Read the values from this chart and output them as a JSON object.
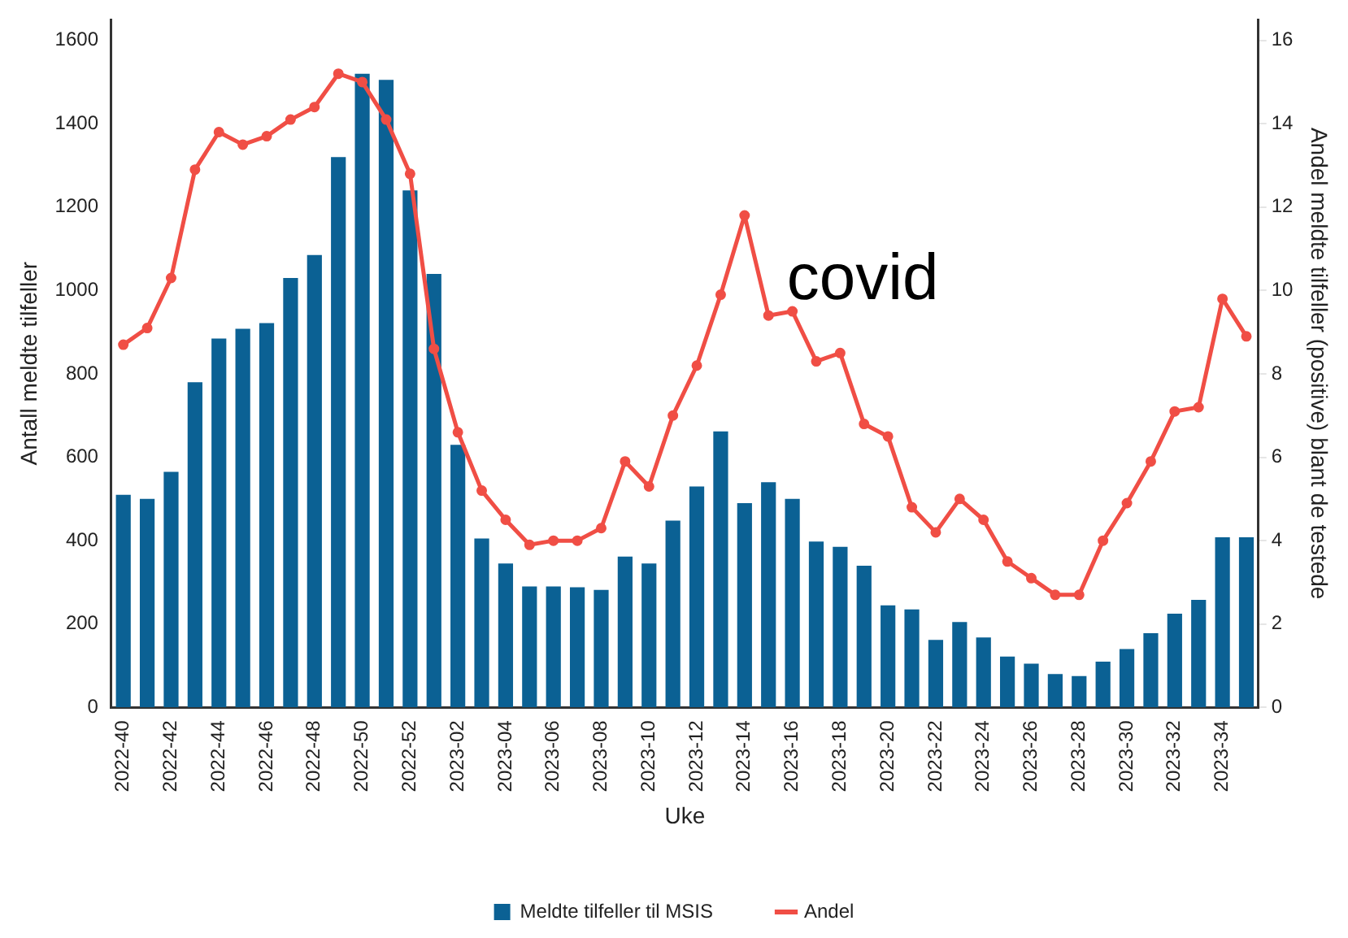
{
  "chart_data": {
    "type": "bar",
    "xlabel": "Uke",
    "ylabel": "Antall meldte tilfeller",
    "y2label": "Andel meldte tilfeller (positive) blant de testede",
    "categories": [
      "2022-40",
      null,
      "2022-42",
      null,
      "2022-44",
      null,
      "2022-46",
      null,
      "2022-48",
      null,
      "2022-50",
      null,
      "2022-52",
      null,
      "2023-02",
      null,
      "2023-04",
      null,
      "2023-06",
      null,
      "2023-08",
      null,
      "2023-10",
      null,
      "2023-12",
      null,
      "2023-14",
      null,
      "2023-16",
      null,
      "2023-18",
      null,
      "2023-20",
      null,
      "2023-22",
      null,
      "2023-24",
      null,
      "2023-26",
      null,
      "2023-28",
      null,
      "2023-30",
      null,
      "2023-32",
      null,
      "2023-34",
      null
    ],
    "series": [
      {
        "name": "Meldte tilfeller til MSIS",
        "color": "#0b6194",
        "values": [
          510,
          500,
          565,
          780,
          885,
          908,
          922,
          1030,
          1085,
          1320,
          1520,
          1505,
          1240,
          1040,
          630,
          405,
          345,
          290,
          290,
          288,
          282,
          362,
          345,
          448,
          530,
          662,
          490,
          540,
          500,
          398,
          385,
          340,
          245,
          235,
          162,
          205,
          168,
          122,
          105,
          80,
          75,
          110,
          140,
          178,
          225,
          258,
          408,
          408
        ]
      },
      {
        "name": "Andel",
        "type": "line",
        "axis": "y2",
        "color": "#f04e45",
        "values": [
          8.7,
          9.1,
          10.3,
          12.9,
          13.8,
          13.5,
          13.7,
          14.1,
          14.4,
          15.2,
          15.0,
          14.1,
          12.8,
          8.6,
          6.6,
          5.2,
          4.5,
          3.9,
          4.0,
          4.0,
          4.3,
          5.9,
          5.3,
          7.0,
          8.2,
          9.9,
          11.8,
          9.4,
          9.5,
          8.3,
          8.5,
          6.8,
          6.5,
          4.8,
          4.2,
          5.0,
          4.5,
          3.5,
          3.1,
          2.7,
          2.7,
          4.0,
          4.9,
          5.9,
          7.1,
          7.2,
          9.8,
          8.9
        ]
      }
    ],
    "ylim": [
      0,
      1650
    ],
    "yticks": [
      0,
      200,
      400,
      600,
      800,
      1000,
      1200,
      1400,
      1600
    ],
    "y2lim": [
      0,
      16.5
    ],
    "y2ticks": [
      0,
      2,
      4,
      6,
      8,
      10,
      12,
      14,
      16
    ],
    "marker": "circle",
    "legend": "bottom",
    "annotations": [
      "covid"
    ]
  }
}
